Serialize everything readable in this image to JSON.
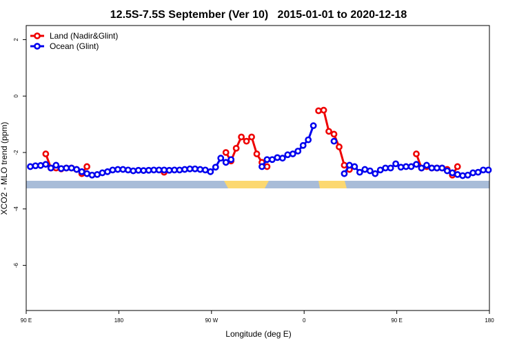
{
  "chart_data": {
    "type": "line",
    "title": "12.5S-7.5S September (Ver 10)   2015-01-01 to 2020-12-18",
    "xlabel": "Longitude (deg E)",
    "ylabel": "XCO2 - MLO trend (ppm)",
    "x": [
      94,
      99,
      104,
      109,
      114,
      119,
      124,
      129,
      134,
      139,
      144,
      149,
      154,
      159,
      164,
      169,
      174,
      179,
      184,
      189,
      194,
      199,
      204,
      209,
      214,
      219,
      224,
      229,
      234,
      239,
      244,
      249,
      254,
      259,
      264,
      269,
      274,
      279,
      284,
      289,
      294,
      299,
      304,
      309,
      314,
      319,
      324,
      329,
      334,
      339,
      344,
      349,
      354,
      359,
      364,
      369,
      374,
      379,
      384,
      389,
      394,
      399,
      404,
      409,
      414,
      419,
      424,
      429,
      434,
      439,
      444,
      449,
      454,
      459,
      464,
      469,
      474,
      479,
      484,
      489,
      494,
      499,
      504,
      509,
      514,
      519,
      524,
      529,
      534,
      539
    ],
    "xlim": [
      90,
      540
    ],
    "xticks": [
      {
        "value": 90,
        "label": "90 E"
      },
      180,
      {
        "value": 270,
        "label": "90 W"
      },
      {
        "value": 360,
        "label": "0"
      },
      {
        "value": 450,
        "label": "90 E"
      },
      {
        "value": 540,
        "label": "180"
      }
    ],
    "ylim": [
      -7.6,
      2.5
    ],
    "yticks": [
      -6,
      -4,
      -2,
      0,
      2
    ],
    "legend": "top-left",
    "series": [
      {
        "name": "Land (Nadir&Glint)",
        "color": "#ee0000",
        "values": [
          null,
          null,
          null,
          -2.05,
          -2.55,
          -2.55,
          -2.58,
          -2.55,
          -2.55,
          -2.6,
          -2.75,
          -2.5,
          null,
          null,
          null,
          null,
          null,
          null,
          null,
          null,
          null,
          null,
          null,
          null,
          null,
          null,
          -2.7,
          null,
          null,
          null,
          null,
          null,
          null,
          null,
          null,
          null,
          null,
          null,
          -2.0,
          -2.3,
          -1.85,
          -1.45,
          -1.6,
          -1.45,
          -2.05,
          -2.35,
          -2.5,
          null,
          null,
          null,
          null,
          null,
          null,
          null,
          null,
          null,
          -0.52,
          -0.5,
          -1.25,
          -1.35,
          -1.8,
          -2.45,
          -2.6,
          null,
          null,
          null,
          null,
          null,
          null,
          null,
          null,
          null,
          null,
          null,
          null,
          -2.05,
          -2.55,
          -2.5,
          -2.55,
          -2.55,
          -2.55,
          -2.6,
          -2.8,
          -2.5,
          null,
          null,
          null,
          null,
          null,
          null
        ]
      },
      {
        "name": "Ocean (Glint)",
        "color": "#0000ee",
        "values": [
          -2.5,
          -2.47,
          -2.46,
          -2.42,
          -2.55,
          -2.45,
          -2.57,
          -2.55,
          -2.55,
          -2.6,
          -2.68,
          -2.75,
          -2.8,
          -2.78,
          -2.72,
          -2.68,
          -2.62,
          -2.6,
          -2.6,
          -2.62,
          -2.65,
          -2.63,
          -2.64,
          -2.63,
          -2.62,
          -2.62,
          -2.62,
          -2.63,
          -2.62,
          -2.62,
          -2.6,
          -2.58,
          -2.58,
          -2.6,
          -2.62,
          -2.68,
          -2.52,
          -2.2,
          -2.35,
          -2.25,
          null,
          null,
          null,
          null,
          null,
          -2.5,
          -2.25,
          -2.25,
          -2.18,
          -2.2,
          -2.08,
          -2.05,
          -1.95,
          -1.75,
          -1.55,
          -1.05,
          null,
          null,
          null,
          -1.6,
          null,
          -2.75,
          -2.45,
          -2.5,
          -2.7,
          -2.6,
          -2.65,
          -2.75,
          -2.62,
          -2.55,
          -2.55,
          -2.4,
          -2.52,
          -2.5,
          -2.5,
          -2.42,
          -2.55,
          -2.45,
          -2.55,
          -2.55,
          -2.55,
          -2.65,
          -2.72,
          -2.78,
          -2.82,
          -2.8,
          -2.72,
          -2.7,
          -2.62,
          -2.62
        ]
      }
    ]
  }
}
